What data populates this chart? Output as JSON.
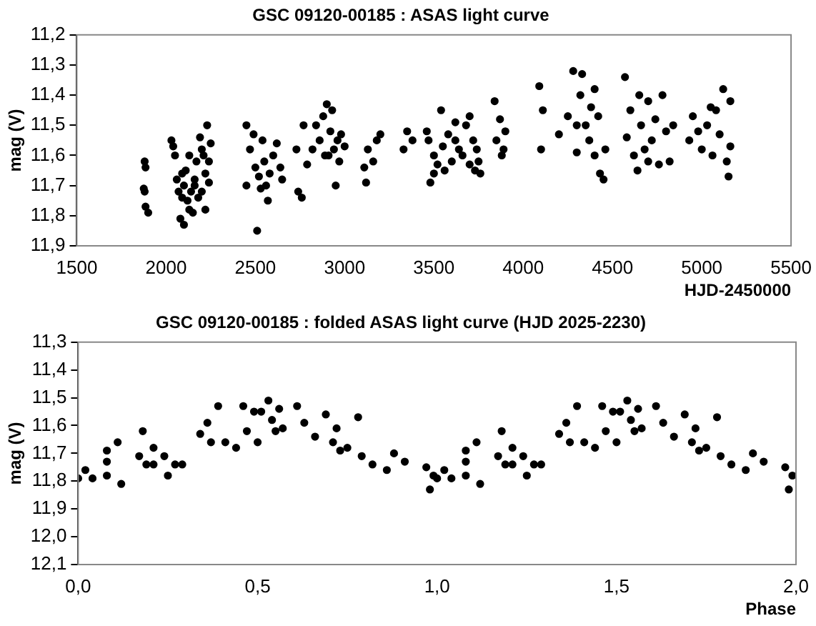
{
  "chart_data": [
    {
      "type": "scatter",
      "title": "GSC 09120-00185 : ASAS light curve",
      "xlabel": "HJD-2450000",
      "ylabel": "mag (V)",
      "grid": false,
      "marker": "circle",
      "xlim": [
        1500,
        5500
      ],
      "xticks": [
        1500,
        2000,
        2500,
        3000,
        3500,
        4000,
        4500,
        5000,
        5500
      ],
      "ylim": [
        11.9,
        11.2
      ],
      "yticks": [
        {
          "value": 11.2,
          "label": "11,2"
        },
        {
          "value": 11.3,
          "label": "11,3"
        },
        {
          "value": 11.4,
          "label": "11,4"
        },
        {
          "value": 11.5,
          "label": "11,5"
        },
        {
          "value": 11.6,
          "label": "11,6"
        },
        {
          "value": 11.7,
          "label": "11,7"
        },
        {
          "value": 11.8,
          "label": "11,8"
        },
        {
          "value": 11.9,
          "label": "11,9"
        }
      ],
      "series": [
        {
          "color": "#000000",
          "x": [
            1880,
            1885,
            1875,
            1880,
            1885,
            1900,
            2030,
            2040,
            2050,
            2060,
            2070,
            2080,
            2090,
            2100,
            2100,
            2110,
            2120,
            2130,
            2140,
            2150,
            2160,
            2170,
            2180,
            2190,
            2200,
            2210,
            2220,
            2230,
            2240,
            2250,
            2220,
            2090,
            2130,
            2200,
            2160,
            2240,
            2450,
            2450,
            2470,
            2490,
            2500,
            2510,
            2520,
            2540,
            2550,
            2560,
            2570,
            2580,
            2600,
            2620,
            2640,
            2650,
            2530,
            2730,
            2740,
            2760,
            2770,
            2790,
            2820,
            2840,
            2860,
            2880,
            2900,
            2910,
            2920,
            2940,
            2950,
            2960,
            2980,
            3000,
            2890,
            2930,
            2970,
            3110,
            3120,
            3130,
            3160,
            3180,
            3200,
            3330,
            3350,
            3380,
            3460,
            3470,
            3480,
            3500,
            3520,
            3540,
            3550,
            3580,
            3600,
            3620,
            3640,
            3660,
            3680,
            3700,
            3720,
            3730,
            3740,
            3750,
            3760,
            3560,
            3500,
            3620,
            3700,
            3840,
            3850,
            3870,
            3880,
            3900,
            3890,
            4090,
            4100,
            4110,
            4200,
            4250,
            4280,
            4300,
            4320,
            4330,
            4350,
            4370,
            4380,
            4400,
            4420,
            4430,
            4450,
            4460,
            4300,
            4400,
            4570,
            4580,
            4600,
            4620,
            4640,
            4660,
            4680,
            4700,
            4720,
            4740,
            4760,
            4780,
            4800,
            4820,
            4840,
            4650,
            4700,
            4930,
            4950,
            4980,
            5000,
            5030,
            5060,
            5080,
            5100,
            5120,
            5140,
            5150,
            5160,
            5050,
            5160
          ],
          "values": [
            11.62,
            11.64,
            11.71,
            11.72,
            11.77,
            11.79,
            11.55,
            11.57,
            11.6,
            11.68,
            11.72,
            11.81,
            11.74,
            11.83,
            11.7,
            11.65,
            11.75,
            11.78,
            11.72,
            11.79,
            11.68,
            11.62,
            11.74,
            11.54,
            11.58,
            11.6,
            11.66,
            11.5,
            11.62,
            11.56,
            11.78,
            11.66,
            11.6,
            11.72,
            11.7,
            11.69,
            11.5,
            11.7,
            11.58,
            11.53,
            11.64,
            11.85,
            11.67,
            11.55,
            11.62,
            11.7,
            11.75,
            11.66,
            11.6,
            11.56,
            11.64,
            11.68,
            11.71,
            11.58,
            11.72,
            11.74,
            11.5,
            11.63,
            11.58,
            11.5,
            11.55,
            11.47,
            11.43,
            11.6,
            11.52,
            11.58,
            11.7,
            11.55,
            11.53,
            11.57,
            11.6,
            11.45,
            11.62,
            11.64,
            11.69,
            11.58,
            11.62,
            11.55,
            11.53,
            11.58,
            11.52,
            11.55,
            11.52,
            11.55,
            11.69,
            11.6,
            11.63,
            11.45,
            11.57,
            11.53,
            11.62,
            11.55,
            11.58,
            11.6,
            11.5,
            11.47,
            11.55,
            11.65,
            11.58,
            11.62,
            11.66,
            11.65,
            11.66,
            11.49,
            11.63,
            11.42,
            11.55,
            11.48,
            11.6,
            11.52,
            11.58,
            11.37,
            11.58,
            11.45,
            11.53,
            11.47,
            11.32,
            11.59,
            11.4,
            11.33,
            11.5,
            11.55,
            11.44,
            11.6,
            11.47,
            11.66,
            11.68,
            11.58,
            11.5,
            11.38,
            11.34,
            11.54,
            11.45,
            11.6,
            11.65,
            11.5,
            11.58,
            11.42,
            11.55,
            11.48,
            11.63,
            11.4,
            11.52,
            11.62,
            11.5,
            11.4,
            11.62,
            11.55,
            11.47,
            11.52,
            11.58,
            11.5,
            11.6,
            11.45,
            11.53,
            11.38,
            11.62,
            11.67,
            11.57,
            11.44,
            11.42
          ]
        }
      ]
    },
    {
      "type": "scatter",
      "title": "GSC 09120-00185 : folded ASAS light curve (HJD 2025-2230)",
      "xlabel": "Phase",
      "ylabel": "mag (V)",
      "grid": false,
      "marker": "circle",
      "xlim": [
        0,
        2
      ],
      "xticks": [
        {
          "value": 0,
          "label": "0,0"
        },
        {
          "value": 0.5,
          "label": "0,5"
        },
        {
          "value": 1,
          "label": "1,0"
        },
        {
          "value": 1.5,
          "label": "1,5"
        },
        {
          "value": 2,
          "label": "2,0"
        }
      ],
      "ylim": [
        12.1,
        11.3
      ],
      "yticks": [
        {
          "value": 11.3,
          "label": "11,3"
        },
        {
          "value": 11.4,
          "label": "11,4"
        },
        {
          "value": 11.5,
          "label": "11,5"
        },
        {
          "value": 11.6,
          "label": "11,6"
        },
        {
          "value": 11.7,
          "label": "11,7"
        },
        {
          "value": 11.8,
          "label": "11,8"
        },
        {
          "value": 11.9,
          "label": "11,9"
        },
        {
          "value": 12,
          "label": "12,0"
        },
        {
          "value": 12.1,
          "label": "12,1"
        }
      ],
      "series": [
        {
          "color": "#000000",
          "x": [
            0.0,
            0.02,
            0.04,
            0.08,
            0.08,
            0.08,
            0.11,
            0.12,
            0.18,
            0.17,
            0.19,
            0.21,
            0.21,
            0.24,
            0.25,
            0.27,
            0.29,
            0.34,
            0.36,
            0.37,
            0.39,
            0.41,
            0.44,
            0.46,
            0.47,
            0.49,
            0.5,
            0.51,
            0.53,
            0.54,
            0.55,
            0.56,
            0.57,
            0.61,
            0.63,
            0.66,
            0.69,
            0.71,
            0.72,
            0.73,
            0.75,
            0.78,
            0.79,
            0.82,
            0.86,
            0.88,
            0.91,
            0.97,
            0.98,
            0.99,
            1.0,
            1.02,
            1.04,
            1.08,
            1.08,
            1.08,
            1.11,
            1.12,
            1.18,
            1.17,
            1.19,
            1.21,
            1.21,
            1.24,
            1.25,
            1.27,
            1.29,
            1.34,
            1.36,
            1.37,
            1.39,
            1.41,
            1.44,
            1.46,
            1.47,
            1.49,
            1.5,
            1.51,
            1.53,
            1.54,
            1.55,
            1.56,
            1.57,
            1.61,
            1.63,
            1.66,
            1.69,
            1.71,
            1.72,
            1.73,
            1.75,
            1.78,
            1.79,
            1.82,
            1.86,
            1.88,
            1.91,
            1.97,
            1.98,
            1.99
          ],
          "values": [
            11.79,
            11.76,
            11.79,
            11.69,
            11.73,
            11.78,
            11.66,
            11.81,
            11.62,
            11.71,
            11.74,
            11.68,
            11.74,
            11.71,
            11.78,
            11.74,
            11.74,
            11.63,
            11.59,
            11.66,
            11.53,
            11.66,
            11.68,
            11.53,
            11.62,
            11.55,
            11.66,
            11.55,
            11.51,
            11.58,
            11.62,
            11.54,
            11.61,
            11.53,
            11.59,
            11.64,
            11.56,
            11.66,
            11.61,
            11.69,
            11.68,
            11.57,
            11.71,
            11.74,
            11.76,
            11.7,
            11.73,
            11.75,
            11.83,
            11.78,
            11.79,
            11.76,
            11.79,
            11.69,
            11.73,
            11.78,
            11.66,
            11.81,
            11.62,
            11.71,
            11.74,
            11.68,
            11.74,
            11.71,
            11.78,
            11.74,
            11.74,
            11.63,
            11.59,
            11.66,
            11.53,
            11.66,
            11.68,
            11.53,
            11.62,
            11.55,
            11.66,
            11.55,
            11.51,
            11.58,
            11.62,
            11.54,
            11.61,
            11.53,
            11.59,
            11.64,
            11.56,
            11.66,
            11.61,
            11.69,
            11.68,
            11.57,
            11.71,
            11.74,
            11.76,
            11.7,
            11.73,
            11.75,
            11.83,
            11.78
          ]
        }
      ]
    }
  ]
}
